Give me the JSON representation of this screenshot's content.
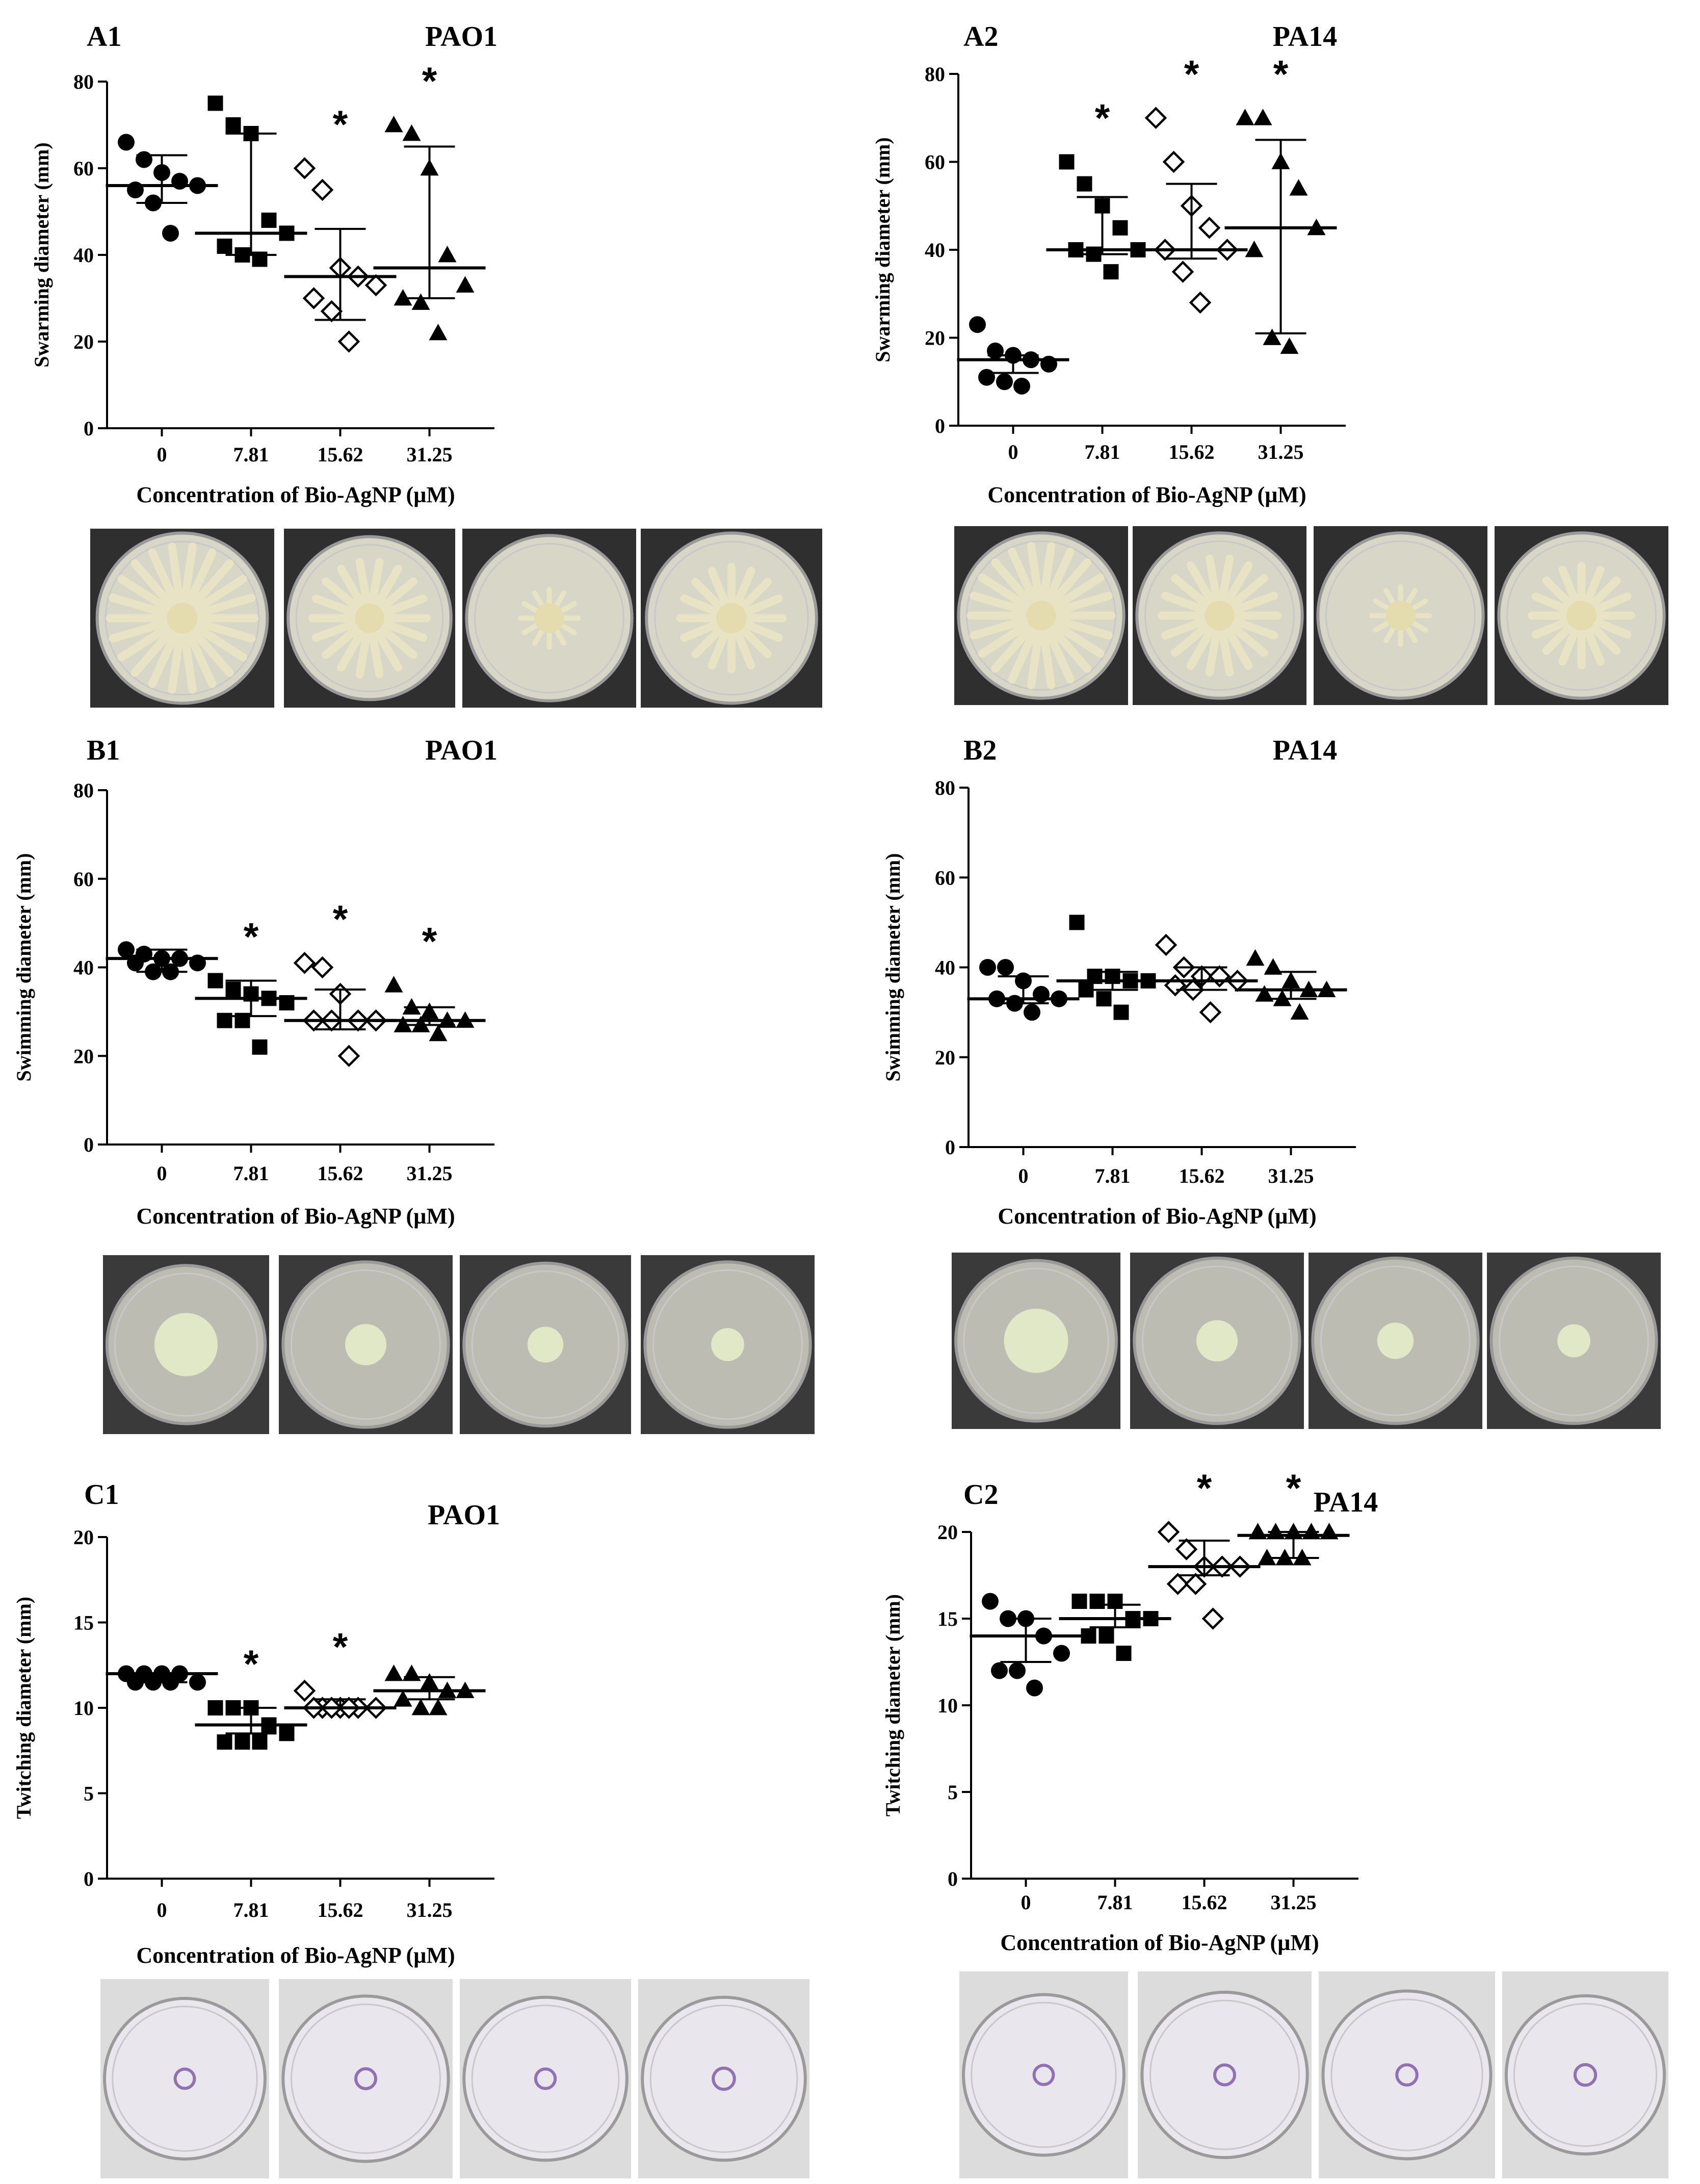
{
  "chart_data": [
    {
      "panel": "A1",
      "title": "PAO1",
      "type": "scatter",
      "ylabel": "Swarming diameter (mm)",
      "xlabel": "Concentration of Bio-AgNP (µM)",
      "categories": [
        "0",
        "7.81",
        "15.62",
        "31.25"
      ],
      "ylim": [
        0,
        80
      ],
      "yticks": [
        "0",
        "20",
        "40",
        "60",
        "80"
      ],
      "markers": [
        "filled-circle",
        "filled-square",
        "open-diamond",
        "filled-triangle"
      ],
      "significance": [
        "",
        "",
        "*",
        "*"
      ],
      "median": [
        56,
        45,
        35,
        37
      ],
      "err_low": [
        52,
        40,
        25,
        30
      ],
      "err_high": [
        63,
        68,
        46,
        65
      ],
      "points": [
        [
          66,
          62,
          59,
          57,
          56,
          55,
          52,
          45
        ],
        [
          75,
          70,
          68,
          48,
          45,
          42,
          40,
          39
        ],
        [
          60,
          55,
          37,
          35,
          33,
          30,
          27,
          20
        ],
        [
          70,
          68,
          60,
          40,
          33,
          30,
          29,
          22
        ]
      ],
      "photos": [
        "plate-0",
        "plate-7.81",
        "plate-15.62",
        "plate-31.25"
      ]
    },
    {
      "panel": "A2",
      "title": "PA14",
      "type": "scatter",
      "ylabel": "Swarming diameter (mm)",
      "xlabel": "Concentration of Bio-AgNP (µM)",
      "categories": [
        "0",
        "7.81",
        "15.62",
        "31.25"
      ],
      "ylim": [
        0,
        80
      ],
      "yticks": [
        "0",
        "20",
        "40",
        "60",
        "80"
      ],
      "markers": [
        "filled-circle",
        "filled-square",
        "open-diamond",
        "filled-triangle"
      ],
      "significance": [
        "",
        "*",
        "*",
        "*"
      ],
      "median": [
        15,
        40,
        40,
        45
      ],
      "err_low": [
        12,
        39,
        38,
        21
      ],
      "err_high": [
        16,
        52,
        55,
        65
      ],
      "points": [
        [
          23,
          17,
          16,
          15,
          14,
          11,
          10,
          9
        ],
        [
          60,
          55,
          50,
          45,
          40,
          40,
          39,
          35
        ],
        [
          70,
          60,
          50,
          45,
          40,
          40,
          35,
          28
        ],
        [
          70,
          70,
          60,
          54,
          45,
          40,
          20,
          18
        ]
      ],
      "photos": [
        "plate-0",
        "plate-7.81",
        "plate-15.62",
        "plate-31.25"
      ]
    },
    {
      "panel": "B1",
      "title": "PAO1",
      "type": "scatter",
      "ylabel": "Swimming diameter (mm)",
      "xlabel": "Concentration of Bio-AgNP (µM)",
      "categories": [
        "0",
        "7.81",
        "15.62",
        "31.25"
      ],
      "ylim": [
        0,
        80
      ],
      "yticks": [
        "0",
        "20",
        "40",
        "60",
        "80"
      ],
      "markers": [
        "filled-circle",
        "filled-square",
        "open-diamond",
        "filled-triangle"
      ],
      "significance": [
        "",
        "*",
        "*",
        "*"
      ],
      "median": [
        42,
        33,
        28,
        28
      ],
      "err_low": [
        39,
        29,
        26,
        27
      ],
      "err_high": [
        44,
        37,
        35,
        31
      ],
      "points": [
        [
          44,
          43,
          42,
          42,
          41,
          41,
          39,
          39
        ],
        [
          37,
          35,
          34,
          33,
          32,
          28,
          28,
          22
        ],
        [
          41,
          40,
          34,
          28,
          28,
          28,
          28,
          20
        ],
        [
          36,
          31,
          30,
          28,
          28,
          27,
          27,
          25
        ]
      ],
      "photos": [
        "plate-0",
        "plate-7.81",
        "plate-15.62",
        "plate-31.25"
      ]
    },
    {
      "panel": "B2",
      "title": "PA14",
      "type": "scatter",
      "ylabel": "Swimming diameter (mm)",
      "xlabel": "Concentration of Bio-AgNP (µM)",
      "categories": [
        "0",
        "7.81",
        "15.62",
        "31.25"
      ],
      "ylim": [
        0,
        80
      ],
      "yticks": [
        "0",
        "20",
        "40",
        "60",
        "80"
      ],
      "markers": [
        "filled-circle",
        "filled-square",
        "open-diamond",
        "filled-triangle"
      ],
      "significance": [
        "",
        "",
        "",
        ""
      ],
      "median": [
        33,
        37,
        37,
        35
      ],
      "err_low": [
        32,
        35,
        35,
        33
      ],
      "err_high": [
        38,
        39,
        40,
        39
      ],
      "points": [
        [
          40,
          40,
          37,
          34,
          33,
          33,
          32,
          30
        ],
        [
          50,
          38,
          38,
          37,
          37,
          35,
          33,
          30
        ],
        [
          45,
          40,
          38,
          38,
          37,
          36,
          35,
          30
        ],
        [
          42,
          40,
          37,
          35,
          35,
          34,
          33,
          30
        ]
      ],
      "photos": [
        "plate-0",
        "plate-7.81",
        "plate-15.62",
        "plate-31.25"
      ]
    },
    {
      "panel": "C1",
      "title": "PAO1",
      "type": "scatter",
      "ylabel": "Twitching diameter (mm)",
      "xlabel": "Concentration of Bio-AgNP (µM)",
      "categories": [
        "0",
        "7.81",
        "15.62",
        "31.25"
      ],
      "ylim": [
        0,
        20
      ],
      "yticks": [
        "0",
        "5",
        "10",
        "15",
        "20"
      ],
      "markers": [
        "filled-circle",
        "filled-square",
        "open-diamond",
        "filled-triangle"
      ],
      "significance": [
        "",
        "*",
        "*",
        ""
      ],
      "median": [
        12,
        9,
        10,
        11
      ],
      "err_low": [
        11.5,
        8.5,
        10,
        10.5
      ],
      "err_high": [
        12,
        10,
        10.5,
        11.8
      ],
      "points": [
        [
          12,
          12,
          12,
          12,
          11.5,
          11.5,
          11.5,
          11.5
        ],
        [
          10,
          10,
          10,
          9,
          8.5,
          8,
          8,
          8
        ],
        [
          11,
          10,
          10,
          10,
          10,
          10,
          10,
          10
        ],
        [
          12,
          12,
          11.5,
          11,
          11,
          10.5,
          10,
          10
        ]
      ],
      "photos": [
        "plate-0",
        "plate-7.81",
        "plate-15.62",
        "plate-31.25"
      ]
    },
    {
      "panel": "C2",
      "title": "PA14",
      "type": "scatter",
      "ylabel": "Twitching diameter (mm)",
      "xlabel": "Concentration of Bio-AgNP (µM)",
      "categories": [
        "0",
        "7.81",
        "15.62",
        "31.25"
      ],
      "ylim": [
        0,
        20
      ],
      "yticks": [
        "0",
        "5",
        "10",
        "15",
        "20"
      ],
      "markers": [
        "filled-circle",
        "filled-square",
        "open-diamond",
        "filled-triangle"
      ],
      "significance": [
        "",
        "",
        "*",
        "*"
      ],
      "median": [
        14,
        15,
        18,
        19.8
      ],
      "err_low": [
        12.5,
        14.5,
        17.5,
        18.5
      ],
      "err_high": [
        15,
        15.8,
        19.5,
        20
      ],
      "points": [
        [
          16,
          15,
          15,
          14,
          13,
          12,
          12,
          11
        ],
        [
          16,
          16,
          16,
          15,
          15,
          14,
          14,
          13
        ],
        [
          20,
          19,
          18,
          18,
          18,
          17,
          17,
          15
        ],
        [
          20,
          20,
          20,
          20,
          20,
          18.5,
          18.5,
          18.5
        ]
      ],
      "photos": [
        "plate-0",
        "plate-7.81",
        "plate-15.62",
        "plate-31.25"
      ]
    }
  ],
  "colors": {
    "ink": "#000000",
    "swarm_bg": "#2f2f2f",
    "swarm_agar": "#d7d6c7",
    "swarm_growth": "#e7e3c4",
    "swim_bg": "#3a3a3a",
    "swim_agar": "#bdbcb2",
    "swim_growth": "#e3ecca",
    "twitch_bg": "#dcdcdc",
    "twitch_agar": "#e9e6ee",
    "twitch_stain": "#6a3f97"
  }
}
